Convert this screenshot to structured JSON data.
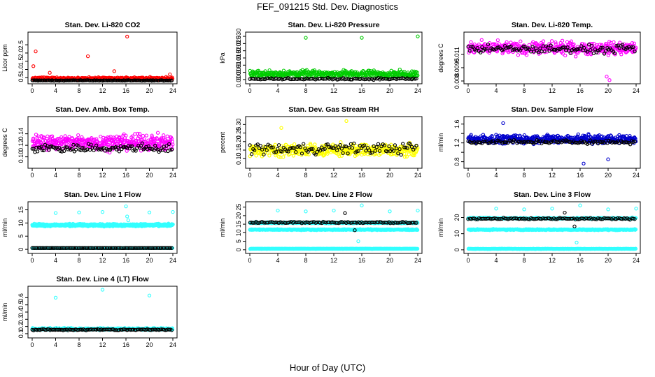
{
  "figure": {
    "title": "FEF_091215  Std. Dev. Diagnostics",
    "xlabel": "Hour of Day (UTC)"
  },
  "colors": {
    "black": "#000000",
    "red": "#ff0000",
    "green": "#00cc00",
    "magenta": "#ff00ff",
    "yellow": "#ffff00",
    "blue": "#0000cc",
    "cyan": "#33ffff"
  },
  "chart_data": [
    {
      "type": "scatter",
      "id": "co2",
      "title": "Stan. Dev. Li-820 CO2",
      "ylabel": "Licor ppm",
      "xlim": [
        0,
        24
      ],
      "xticks": [
        0,
        4,
        8,
        12,
        16,
        20,
        24
      ],
      "ylim": [
        0.3,
        3.1
      ],
      "yticks": [
        0.5,
        1.0,
        1.5,
        2.0,
        2.5
      ],
      "ytick_labels": [
        "0.5",
        "1.0",
        "1.5",
        "2.0",
        "2.5"
      ],
      "series": [
        {
          "color": "#ff0000",
          "base": 0.45,
          "spread": 0.12,
          "n": 300,
          "outliers": [
            [
              0.2,
              1.2
            ],
            [
              0.6,
              2.1
            ],
            [
              3.0,
              0.8
            ],
            [
              9.5,
              1.8
            ],
            [
              14.0,
              0.9
            ],
            [
              16.2,
              3.0
            ],
            [
              23.5,
              0.7
            ]
          ]
        },
        {
          "color": "#000000",
          "base": 0.33,
          "spread": 0.03,
          "n": 120,
          "outliers": []
        }
      ]
    },
    {
      "type": "scatter",
      "id": "pressure",
      "title": "Stan. Dev. Li-820 Pressure",
      "ylabel": "kPa",
      "xlim": [
        0,
        24
      ],
      "xticks": [
        0,
        4,
        8,
        12,
        16,
        20,
        24
      ],
      "ylim": [
        -0.001,
        0.031
      ],
      "yticks": [
        0.0,
        0.005,
        0.01,
        0.015,
        0.02,
        0.025,
        0.03
      ],
      "ytick_labels": [
        "0.000",
        "0.005",
        "0.010",
        "0.015",
        "0.020",
        "0.025",
        "0.030"
      ],
      "series": [
        {
          "color": "#00cc00",
          "base": 0.004,
          "spread": 0.0035,
          "n": 420,
          "outliers": [
            [
              8.0,
              0.029
            ],
            [
              16.0,
              0.029
            ],
            [
              24.0,
              0.03
            ]
          ]
        },
        {
          "color": "#000000",
          "base": 0.0005,
          "spread": 0.001,
          "n": 110,
          "outliers": []
        }
      ]
    },
    {
      "type": "scatter",
      "id": "temp",
      "title": "Stan. Dev. Li-820 Temp.",
      "ylabel": "degrees C",
      "xlim": [
        0,
        24
      ],
      "xticks": [
        0,
        4,
        8,
        12,
        16,
        20,
        24
      ],
      "ylim": [
        0.008,
        0.0132
      ],
      "yticks": [
        0.008,
        0.0095,
        0.011
      ],
      "ytick_labels": [
        "0.008",
        "0.0095",
        "0.011"
      ],
      "series": [
        {
          "color": "#ff00ff",
          "base": 0.0117,
          "spread": 0.0011,
          "n": 380,
          "outliers": [
            [
              19.8,
              0.0085
            ],
            [
              20.2,
              0.0081
            ]
          ]
        },
        {
          "color": "#000000",
          "base": 0.0116,
          "spread": 0.0007,
          "n": 110,
          "outliers": []
        }
      ]
    },
    {
      "type": "scatter",
      "id": "boxtemp",
      "title": "Stan. Dev. Amb. Box Temp.",
      "ylabel": "degrees C",
      "xlim": [
        0,
        24
      ],
      "xticks": [
        0,
        4,
        8,
        12,
        16,
        20,
        24
      ],
      "ylim": [
        0.085,
        0.165
      ],
      "yticks": [
        0.1,
        0.12,
        0.14
      ],
      "ytick_labels": [
        "0.10",
        "0.12",
        "0.14"
      ],
      "series": [
        {
          "color": "#ff00ff",
          "base": 0.125,
          "spread": 0.02,
          "n": 420,
          "outliers": []
        },
        {
          "color": "#000000",
          "base": 0.115,
          "spread": 0.012,
          "n": 110,
          "outliers": []
        }
      ]
    },
    {
      "type": "scatter",
      "id": "rh",
      "title": "Stan. Dev. Gas Stream RH",
      "ylabel": "percent",
      "xlim": [
        0,
        24
      ],
      "xticks": [
        0,
        4,
        8,
        12,
        16,
        20,
        24
      ],
      "ylim": [
        0.06,
        0.33
      ],
      "yticks": [
        0.1,
        0.15,
        0.2,
        0.25,
        0.3
      ],
      "ytick_labels": [
        "0.10",
        "0.15",
        "0.20",
        "0.25",
        "0.30"
      ],
      "series": [
        {
          "color": "#ffff00",
          "base": 0.15,
          "spread": 0.055,
          "n": 420,
          "outliers": [
            [
              13.8,
              0.32
            ],
            [
              4.5,
              0.28
            ]
          ]
        },
        {
          "color": "#000000",
          "base": 0.16,
          "spread": 0.05,
          "n": 110,
          "outliers": []
        }
      ]
    },
    {
      "type": "scatter",
      "id": "sampleflow",
      "title": "Stan. Dev. Sample Flow",
      "ylabel": "ml/min",
      "xlim": [
        0,
        24
      ],
      "xticks": [
        0,
        4,
        8,
        12,
        16,
        20,
        24
      ],
      "ylim": [
        0.72,
        1.7
      ],
      "yticks": [
        0.8,
        1.0,
        1.2,
        1.4,
        1.6
      ],
      "ytick_labels": [
        "0.8",
        "",
        "1.2",
        "",
        "1.6"
      ],
      "series": [
        {
          "color": "#0000cc",
          "base": 1.28,
          "spread": 0.14,
          "n": 460,
          "outliers": [
            [
              16.5,
              0.76
            ],
            [
              5.0,
              1.62
            ],
            [
              20.0,
              0.85
            ]
          ]
        },
        {
          "color": "#000000",
          "base": 1.22,
          "spread": 0.06,
          "n": 110,
          "outliers": []
        }
      ]
    },
    {
      "type": "scatter",
      "id": "line1",
      "title": "Stan. Dev. Line 1 Flow",
      "ylabel": "ml/min",
      "xlim": [
        0,
        24
      ],
      "xticks": [
        0,
        4,
        8,
        12,
        16,
        20,
        24
      ],
      "ylim": [
        -0.5,
        17
      ],
      "yticks": [
        0,
        5,
        10,
        15
      ],
      "ytick_labels": [
        "0",
        "5",
        "10",
        "15"
      ],
      "series": [
        {
          "color": "#33ffff",
          "base": 9.2,
          "spread": 0.7,
          "n": 600,
          "outliers": [
            [
              4.0,
              13.8
            ],
            [
              8.0,
              14.0
            ],
            [
              12.0,
              14.2
            ],
            [
              16.0,
              16.3
            ],
            [
              16.2,
              12.5
            ],
            [
              16.4,
              11.0
            ],
            [
              20.0,
              14.0
            ],
            [
              24.0,
              14.2
            ]
          ]
        },
        {
          "color": "#33ffff",
          "base": 0.5,
          "spread": 0.1,
          "n": 300,
          "outliers": []
        },
        {
          "color": "#000000",
          "base": 0.5,
          "spread": 0.06,
          "n": 110,
          "outliers": []
        }
      ]
    },
    {
      "type": "scatter",
      "id": "line2",
      "title": "Stan. Dev. Line 2 Flow",
      "ylabel": "ml/min",
      "xlim": [
        0,
        24
      ],
      "xticks": [
        0,
        4,
        8,
        12,
        16,
        20,
        24
      ],
      "ylim": [
        -0.5,
        26.5
      ],
      "yticks": [
        0,
        5,
        10,
        15,
        20,
        25
      ],
      "ytick_labels": [
        "0",
        "5",
        "10",
        "15",
        "20",
        "25"
      ],
      "series": [
        {
          "color": "#33ffff",
          "base": 15.8,
          "spread": 0.5,
          "n": 350,
          "outliers": [
            [
              4.0,
              23.0
            ],
            [
              8.0,
              22.5
            ],
            [
              12.0,
              23.0
            ],
            [
              16.0,
              26.0
            ],
            [
              15.5,
              5.0
            ],
            [
              20.0,
              22.5
            ],
            [
              24.0,
              23.0
            ]
          ]
        },
        {
          "color": "#33ffff",
          "base": 11.8,
          "spread": 0.4,
          "n": 350,
          "outliers": []
        },
        {
          "color": "#33ffff",
          "base": 0.6,
          "spread": 0.15,
          "n": 300,
          "outliers": []
        },
        {
          "color": "#000000",
          "base": 16.0,
          "spread": 0.7,
          "n": 110,
          "outliers": [
            [
              13.6,
              21.5
            ],
            [
              15.0,
              11.5
            ]
          ]
        }
      ]
    },
    {
      "type": "scatter",
      "id": "line3",
      "title": "Stan. Dev. Line 3 Flow",
      "ylabel": "ml/min",
      "xlim": [
        0,
        24
      ],
      "xticks": [
        0,
        4,
        8,
        12,
        16,
        20,
        24
      ],
      "ylim": [
        -0.5,
        28
      ],
      "yticks": [
        0,
        10,
        20
      ],
      "ytick_labels": [
        "0",
        "10",
        "20"
      ],
      "series": [
        {
          "color": "#33ffff",
          "base": 19.5,
          "spread": 0.6,
          "n": 350,
          "outliers": [
            [
              4.0,
              25.5
            ],
            [
              8.0,
              25.0
            ],
            [
              12.0,
              25.5
            ],
            [
              16.0,
              27.5
            ],
            [
              15.5,
              4.5
            ],
            [
              20.0,
              25.0
            ],
            [
              24.0,
              25.5
            ]
          ]
        },
        {
          "color": "#33ffff",
          "base": 12.5,
          "spread": 0.5,
          "n": 350,
          "outliers": []
        },
        {
          "color": "#33ffff",
          "base": 0.6,
          "spread": 0.15,
          "n": 300,
          "outliers": []
        },
        {
          "color": "#000000",
          "base": 19.2,
          "spread": 0.8,
          "n": 110,
          "outliers": [
            [
              13.8,
              23.0
            ],
            [
              15.2,
              14.5
            ]
          ]
        }
      ]
    },
    {
      "type": "scatter",
      "id": "line4",
      "title": "Stan. Dev. Line 4 (LT) Flow",
      "ylabel": "ml/min",
      "xlim": [
        0,
        24
      ],
      "xticks": [
        0,
        4,
        8,
        12,
        16,
        20,
        24
      ],
      "ylim": [
        0.08,
        0.72
      ],
      "yticks": [
        0.1,
        0.2,
        0.3,
        0.4,
        0.5,
        0.6
      ],
      "ytick_labels": [
        "0.1",
        "0.2",
        "0.3",
        "0.4",
        "0.5",
        "0.6"
      ],
      "series": [
        {
          "color": "#33ffff",
          "base": 0.165,
          "spread": 0.02,
          "n": 420,
          "outliers": [
            [
              4.0,
              0.6
            ],
            [
              12.0,
              0.71
            ],
            [
              20.0,
              0.63
            ]
          ]
        },
        {
          "color": "#000000",
          "base": 0.155,
          "spread": 0.015,
          "n": 110,
          "outliers": []
        }
      ]
    }
  ]
}
